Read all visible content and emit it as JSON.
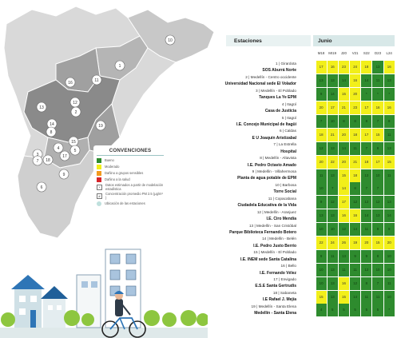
{
  "legend": {
    "title": "CONVENCIONES",
    "items": [
      {
        "label": "Bueno",
        "color": "#2e8b2e",
        "kind": "color"
      },
      {
        "label": "Moderado",
        "color": "#f2ef1a",
        "kind": "color"
      },
      {
        "label": "Dañino a grupos sensibles",
        "color": "#f39a1e",
        "kind": "color"
      },
      {
        "label": "Dañino a la salud",
        "color": "#d6252b",
        "kind": "color"
      },
      {
        "label": "Datos estimados a partir de modelación estadística",
        "kind": "box",
        "symbol": "*"
      },
      {
        "label": "Concentración promedio PM 2.5 (μg/m³ )",
        "kind": "box",
        "symbol": "#"
      },
      {
        "label": "Ubicación de las estaciones",
        "kind": "dot"
      }
    ]
  },
  "map_labels": [
    "10",
    "1",
    "16",
    "11",
    "13",
    "12",
    "2",
    "14",
    "8",
    "19",
    "3",
    "4",
    "17",
    "15",
    "5",
    "18",
    "7",
    "9",
    "6"
  ],
  "table": {
    "header_stations": "Estaciones",
    "header_month": "Junio",
    "columns": [
      "M18",
      "MI19",
      "J20",
      "V21",
      "S22",
      "D23",
      "L24"
    ],
    "rows": [
      {
        "num": "1 | Girardota",
        "name": "SOS Aburrá Norte",
        "values": [
          "17",
          "16",
          "23",
          "24",
          "18",
          "13",
          "16"
        ],
        "colors": [
          "Y",
          "Y",
          "Y",
          "Y",
          "Y",
          "G",
          "Y"
        ]
      },
      {
        "num": "2 | Medellín - Centro occidente",
        "name": "Universidad Nacional sede El Volador",
        "values": [
          "13",
          "13",
          "14",
          "16",
          "14",
          "11",
          "13"
        ],
        "colors": [
          "G",
          "G",
          "G",
          "Y",
          "G",
          "G",
          "G"
        ]
      },
      {
        "num": "3 | Medellín - El Poblado",
        "name": "Tanques La Ye EPM",
        "values": [
          "9",
          "14",
          "15",
          "20",
          "*",
          "*",
          "*"
        ],
        "colors": [
          "G",
          "G",
          "Y",
          "Y",
          "G",
          "G",
          "G"
        ]
      },
      {
        "num": "4 | Itagüí",
        "name": "Casa de Justicia",
        "values": [
          "20",
          "17",
          "21",
          "23",
          "17",
          "16",
          "16"
        ],
        "colors": [
          "Y",
          "Y",
          "Y",
          "Y",
          "Y",
          "Y",
          "Y"
        ]
      },
      {
        "num": "5 | Itagüí",
        "name": "I.E. Concejo Municipal de Itagüí",
        "values": [
          "7",
          "10",
          "8",
          "8",
          "8",
          "7",
          "8"
        ],
        "colors": [
          "G",
          "G",
          "G",
          "G",
          "G",
          "G",
          "G"
        ]
      },
      {
        "num": "6 | Caldas",
        "name": "E U Joaquín Aristizabal",
        "values": [
          "18",
          "21",
          "20",
          "18",
          "17",
          "15",
          "11"
        ],
        "colors": [
          "Y",
          "Y",
          "Y",
          "Y",
          "Y",
          "Y",
          "G"
        ]
      },
      {
        "num": "7 | La Estrella",
        "name": "Hospital",
        "values": [
          "12",
          "13",
          "14",
          "11",
          "7",
          "8",
          "13"
        ],
        "colors": [
          "G",
          "G",
          "G",
          "G",
          "G",
          "G",
          "G"
        ]
      },
      {
        "num": "8 | Medellín - Altavista",
        "name": "I.E. Pedro Octavio Amado",
        "values": [
          "20",
          "22",
          "20",
          "21",
          "18",
          "17",
          "15"
        ],
        "colors": [
          "Y",
          "Y",
          "Y",
          "Y",
          "Y",
          "Y",
          "Y"
        ]
      },
      {
        "num": "9 | Medellín - Villahermosa",
        "name": "Planta de agua potable de EPM",
        "values": [
          "11",
          "13",
          "15",
          "18",
          "12",
          "10",
          "11"
        ],
        "colors": [
          "G",
          "G",
          "Y",
          "Y",
          "G",
          "G",
          "G"
        ]
      },
      {
        "num": "10 | Barbosa",
        "name": "Torre Social",
        "values": [
          "10",
          "7",
          "14",
          "8",
          "7",
          "7",
          ""
        ],
        "colors": [
          "G",
          "G",
          "Y",
          "G",
          "G",
          "G",
          "G"
        ]
      },
      {
        "num": "11 | Copacabana",
        "name": "Ciudadela Educativa de la Vida",
        "values": [
          "9",
          "12",
          "17",
          "12",
          "12",
          "12",
          "13"
        ],
        "colors": [
          "G",
          "G",
          "Y",
          "G",
          "G",
          "G",
          "G"
        ]
      },
      {
        "num": "12 | Medellín - Aranjuez",
        "name": "I.E. Ciro Mendía",
        "values": [
          "13",
          "13",
          "16",
          "16",
          "14",
          "13",
          "14"
        ],
        "colors": [
          "G",
          "G",
          "Y",
          "Y",
          "G",
          "G",
          "G"
        ]
      },
      {
        "num": "13 | Medellín - San Cristóbal",
        "name": "Parque Biblioteca Fernando Botero",
        "values": [
          "10",
          "10",
          "12",
          "14",
          "11",
          "9",
          "9"
        ],
        "colors": [
          "G",
          "G",
          "G",
          "G",
          "G",
          "G",
          "G"
        ]
      },
      {
        "num": "14 | Medellín - Belén",
        "name": "I.E. Pedro Justo Berrío",
        "values": [
          "22",
          "24",
          "26",
          "19",
          "20",
          "15",
          "20"
        ],
        "colors": [
          "Y",
          "Y",
          "Y",
          "Y",
          "Y",
          "Y",
          "Y"
        ]
      },
      {
        "num": "15 | Medellín - El Poblado",
        "name": "I.E. INEM sede Santa Catalina",
        "values": [
          "9",
          "11",
          "13",
          "9",
          "9",
          "8",
          "10"
        ],
        "colors": [
          "G",
          "G",
          "G",
          "G",
          "G",
          "G",
          "G"
        ]
      },
      {
        "num": "16 | Bello",
        "name": "I.E. Fernando Vélez",
        "values": [
          "10",
          "13",
          "11",
          "11",
          "12",
          "10",
          "10"
        ],
        "colors": [
          "G",
          "G",
          "G",
          "G",
          "G",
          "G",
          "G"
        ]
      },
      {
        "num": "17 | Envigado",
        "name": "E.S.E Santa Gertrudis",
        "values": [
          "10",
          "13",
          "16",
          "12",
          "8",
          "7",
          "11"
        ],
        "colors": [
          "G",
          "G",
          "Y",
          "G",
          "G",
          "G",
          "G"
        ]
      },
      {
        "num": "18 | Sabaneta",
        "name": "I.E Rafael J. Mejía",
        "values": [
          "15",
          "13",
          "15",
          "14",
          "11",
          "11",
          "10"
        ],
        "colors": [
          "Y",
          "G",
          "Y",
          "G",
          "G",
          "G",
          "G"
        ]
      },
      {
        "num": "19 | Medellín - Santa Elena",
        "name": "Medellín - Santa Elena",
        "values": [
          "4",
          "5",
          "5",
          "5",
          "5",
          "5",
          "*"
        ],
        "colors": [
          "G",
          "G",
          "G",
          "G",
          "G",
          "G",
          "G"
        ]
      }
    ]
  },
  "colors": {
    "good": "#2e8b2e",
    "moderate": "#f2ef1a",
    "header": "#d8e8e8"
  }
}
